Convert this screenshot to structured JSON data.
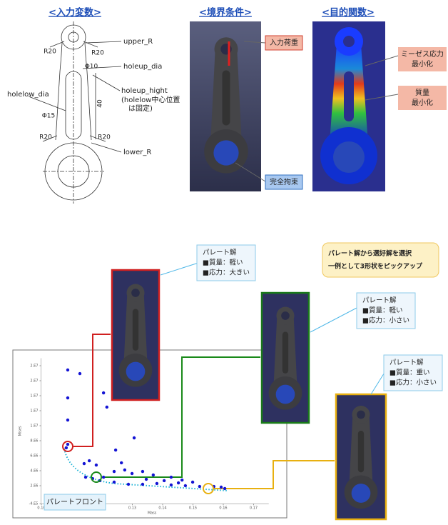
{
  "input_panel": {
    "title": "<入力変数>",
    "labels": [
      "upper_R",
      "holeup_dia",
      "holeup_hight",
      "(holelow中心位置",
      "は固定)",
      "holelow_dia",
      "lower_R"
    ],
    "dims": [
      "R20",
      "R20",
      "Φ10",
      40,
      "Φ15",
      "R20",
      "R20"
    ]
  },
  "boundary_panel": {
    "title": "<境界条件>",
    "callouts": [
      "入力荷重",
      "完全拘束"
    ]
  },
  "objective_panel": {
    "title": "<目的関数>",
    "callouts": [
      [
        "ミーゼス応力",
        "最小化"
      ],
      [
        "質量",
        "最小化"
      ]
    ]
  },
  "pareto_callouts": [
    [
      "パレート解",
      "■質量：軽い",
      "■応力：大きい"
    ],
    [
      "パレート解",
      "■質量：軽い",
      "■応力：小さい"
    ],
    [
      "パレート解",
      "■質量：重い",
      "■応力：小さい"
    ]
  ],
  "note": [
    "パレート解から選好解を選択",
    "一例として3形状をピックアップ"
  ],
  "chart_data": {
    "type": "scatter",
    "x_label": "Mass",
    "y_label": "Mises",
    "front_label": "パレートフロント",
    "xlim": [
      0.098,
      0.175
    ],
    "xticks": [
      {
        "value": 0.1,
        "label": "0.10"
      },
      0.13,
      0.14,
      0.15,
      0.16,
      0.17
    ],
    "ylim": [
      -400000,
      19000000
    ],
    "yticks": [
      {
        "value": 18000000,
        "label": "2.E7"
      },
      {
        "value": 16000000,
        "label": "2.E7"
      },
      {
        "value": 14000000,
        "label": "1.E7"
      },
      {
        "value": 12000000,
        "label": "1.E7"
      },
      {
        "value": 10000000,
        "label": "1.E7"
      },
      {
        "value": 8000000,
        "label": "8.E6"
      },
      {
        "value": 6000000,
        "label": "6.E6"
      },
      {
        "value": 4000000,
        "label": "4.E6"
      },
      {
        "value": 2000000,
        "label": "2.E6"
      },
      {
        "value": -400000,
        "label": "-4.E5"
      }
    ],
    "series": [
      {
        "color": "#1414d4",
        "x": [
          0.1087,
          0.1127,
          0.1087,
          0.1087,
          0.1205,
          0.1216,
          0.1087,
          0.1082,
          0.1245,
          0.1306,
          0.1158,
          0.1181,
          0.1264,
          0.124,
          0.1275,
          0.1299,
          0.1334,
          0.1369,
          0.1428,
          0.1464,
          0.1499,
          0.1205,
          0.1169,
          0.1146,
          0.1193,
          0.124,
          0.1287,
          0.1334,
          0.1381,
          0.1428,
          0.1475,
          0.1522,
          0.1569,
          0.1593,
          0.1605,
          0.1452,
          0.1405,
          0.1346,
          0.1141
        ],
        "y": [
          17430000,
          16950000,
          13710000,
          10760000,
          14380000,
          12480000,
          7520000,
          7050000,
          6760000,
          8380000,
          5330000,
          4760000,
          5050000,
          3900000,
          4100000,
          3620000,
          3900000,
          3430000,
          3140000,
          2760000,
          2480000,
          3140000,
          2950000,
          3140000,
          2670000,
          2480000,
          2190000,
          2190000,
          2290000,
          2100000,
          2000000,
          1900000,
          1900000,
          1810000,
          1620000,
          2380000,
          2670000,
          2860000,
          4950000
        ]
      }
    ]
  }
}
